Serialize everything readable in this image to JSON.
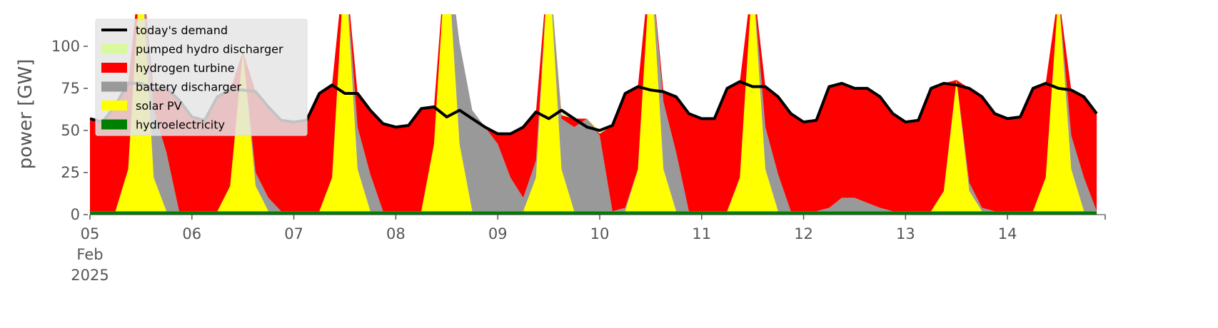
{
  "chart_data": {
    "type": "area",
    "ylabel": "power [GW]",
    "ylim": [
      0,
      119
    ],
    "yticks": [
      0,
      25,
      50,
      75,
      100
    ],
    "xlim": [
      "2025-02-05 00:00",
      "2025-02-14 23:00"
    ],
    "xticks": [
      {
        "value": "2025-02-05 00:00",
        "label": "05\nFeb\n2025"
      },
      {
        "value": "2025-02-06 00:00",
        "label": "06"
      },
      {
        "value": "2025-02-07 00:00",
        "label": "07"
      },
      {
        "value": "2025-02-08 00:00",
        "label": "08"
      },
      {
        "value": "2025-02-09 00:00",
        "label": "09"
      },
      {
        "value": "2025-02-10 00:00",
        "label": "10"
      },
      {
        "value": "2025-02-11 00:00",
        "label": "11"
      },
      {
        "value": "2025-02-12 00:00",
        "label": "12"
      },
      {
        "value": "2025-02-13 00:00",
        "label": "13"
      },
      {
        "value": "2025-02-14 00:00",
        "label": "14"
      }
    ],
    "legend": "upper left",
    "x": [
      "2025-02-05 00:00",
      "2025-02-05 03:00",
      "2025-02-05 06:00",
      "2025-02-05 09:00",
      "2025-02-05 12:00",
      "2025-02-05 15:00",
      "2025-02-05 18:00",
      "2025-02-05 21:00",
      "2025-02-06 00:00",
      "2025-02-06 03:00",
      "2025-02-06 06:00",
      "2025-02-06 09:00",
      "2025-02-06 12:00",
      "2025-02-06 15:00",
      "2025-02-06 18:00",
      "2025-02-06 21:00",
      "2025-02-07 00:00",
      "2025-02-07 03:00",
      "2025-02-07 06:00",
      "2025-02-07 09:00",
      "2025-02-07 12:00",
      "2025-02-07 15:00",
      "2025-02-07 18:00",
      "2025-02-07 21:00",
      "2025-02-08 00:00",
      "2025-02-08 03:00",
      "2025-02-08 06:00",
      "2025-02-08 09:00",
      "2025-02-08 12:00",
      "2025-02-08 15:00",
      "2025-02-08 18:00",
      "2025-02-08 21:00",
      "2025-02-09 00:00",
      "2025-02-09 03:00",
      "2025-02-09 06:00",
      "2025-02-09 09:00",
      "2025-02-09 12:00",
      "2025-02-09 15:00",
      "2025-02-09 18:00",
      "2025-02-09 21:00",
      "2025-02-10 00:00",
      "2025-02-10 03:00",
      "2025-02-10 06:00",
      "2025-02-10 09:00",
      "2025-02-10 12:00",
      "2025-02-10 15:00",
      "2025-02-10 18:00",
      "2025-02-10 21:00",
      "2025-02-11 00:00",
      "2025-02-11 03:00",
      "2025-02-11 06:00",
      "2025-02-11 09:00",
      "2025-02-11 12:00",
      "2025-02-11 15:00",
      "2025-02-11 18:00",
      "2025-02-11 21:00",
      "2025-02-12 00:00",
      "2025-02-12 03:00",
      "2025-02-12 06:00",
      "2025-02-12 09:00",
      "2025-02-12 12:00",
      "2025-02-12 15:00",
      "2025-02-12 18:00",
      "2025-02-12 21:00",
      "2025-02-13 00:00",
      "2025-02-13 03:00",
      "2025-02-13 06:00",
      "2025-02-13 09:00",
      "2025-02-13 12:00",
      "2025-02-13 15:00",
      "2025-02-13 18:00",
      "2025-02-13 21:00",
      "2025-02-14 00:00",
      "2025-02-14 03:00",
      "2025-02-14 06:00",
      "2025-02-14 09:00",
      "2025-02-14 12:00",
      "2025-02-14 15:00",
      "2025-02-14 18:00",
      "2025-02-14 21:00"
    ],
    "series": [
      {
        "name": "today's demand",
        "type": "line",
        "color": "#000000",
        "values": [
          57,
          55,
          65,
          78,
          78,
          74,
          75,
          68,
          58,
          56,
          70,
          74,
          74,
          73,
          64,
          56,
          55,
          56,
          72,
          77,
          72,
          72,
          62,
          54,
          52,
          53,
          63,
          64,
          58,
          62,
          57,
          52,
          48,
          48,
          52,
          61,
          57,
          62,
          57,
          52,
          50,
          53,
          72,
          76,
          74,
          73,
          70,
          60,
          57,
          57,
          75,
          79,
          76,
          76,
          70,
          60,
          55,
          56,
          76,
          78,
          75,
          75,
          70,
          60,
          55,
          56,
          75,
          78,
          77,
          75,
          70,
          60,
          57,
          58,
          75,
          78,
          75,
          74,
          70,
          60
        ]
      },
      {
        "name": "pumped hydro discharger",
        "type": "area",
        "color": "#d9f99d",
        "values": [
          0,
          0,
          0,
          0,
          0,
          0,
          0,
          0,
          0,
          0,
          0,
          0,
          0,
          0,
          0,
          0,
          0,
          0,
          0,
          0,
          0,
          0,
          0,
          0,
          0,
          0,
          0,
          0,
          0,
          0,
          0,
          0,
          0,
          0,
          0,
          0,
          3,
          3,
          0,
          0,
          2,
          0,
          0,
          0,
          0,
          0,
          0,
          0,
          0,
          0,
          0,
          0,
          0,
          0,
          0,
          0,
          0,
          0,
          0,
          0,
          0,
          0,
          0,
          0,
          0,
          0,
          0,
          0,
          0,
          0,
          0,
          0,
          0,
          0,
          0,
          0,
          0,
          0,
          0,
          0
        ]
      },
      {
        "name": "hydrogen turbine",
        "type": "area",
        "color": "#ff0000",
        "values": [
          55,
          53,
          63,
          51,
          0,
          12,
          38,
          66,
          56,
          54,
          68,
          57,
          0,
          48,
          54,
          54,
          53,
          54,
          70,
          55,
          0,
          20,
          38,
          52,
          50,
          51,
          61,
          22,
          0,
          0,
          0,
          0,
          6,
          26,
          42,
          29,
          0,
          2,
          5,
          0,
          1,
          51,
          68,
          49,
          0,
          6,
          33,
          58,
          55,
          55,
          73,
          57,
          0,
          24,
          46,
          58,
          53,
          54,
          72,
          68,
          65,
          68,
          66,
          58,
          53,
          54,
          73,
          64,
          0,
          56,
          66,
          58,
          55,
          56,
          73,
          56,
          0,
          27,
          48,
          58
        ]
      },
      {
        "name": "battery discharger",
        "type": "area",
        "color": "#999999",
        "values": [
          0,
          0,
          0,
          0,
          0,
          40,
          35,
          0,
          0,
          0,
          0,
          0,
          0,
          8,
          8,
          0,
          0,
          0,
          0,
          0,
          0,
          25,
          22,
          0,
          0,
          0,
          0,
          0,
          0,
          60,
          60,
          50,
          40,
          20,
          8,
          10,
          0,
          30,
          50,
          55,
          45,
          0,
          2,
          0,
          0,
          40,
          35,
          0,
          0,
          0,
          0,
          0,
          0,
          25,
          22,
          0,
          0,
          0,
          2,
          8,
          8,
          5,
          2,
          0,
          0,
          0,
          0,
          0,
          0,
          5,
          2,
          0,
          0,
          0,
          0,
          0,
          0,
          20,
          20,
          0
        ]
      },
      {
        "name": "solar PV",
        "type": "area",
        "color": "#ffff00",
        "values": [
          0,
          0,
          0,
          25,
          150,
          20,
          0,
          0,
          0,
          0,
          0,
          15,
          95,
          15,
          0,
          0,
          0,
          0,
          0,
          20,
          150,
          25,
          0,
          0,
          0,
          0,
          0,
          40,
          160,
          40,
          0,
          0,
          0,
          0,
          0,
          20,
          150,
          25,
          0,
          0,
          0,
          0,
          0,
          25,
          150,
          25,
          0,
          0,
          0,
          0,
          0,
          20,
          140,
          25,
          0,
          0,
          0,
          0,
          0,
          0,
          0,
          0,
          0,
          0,
          0,
          0,
          0,
          12,
          78,
          12,
          0,
          0,
          0,
          0,
          0,
          20,
          130,
          25,
          0,
          0
        ]
      },
      {
        "name": "hydroelectricity",
        "type": "area",
        "color": "#008000",
        "values": [
          2,
          2,
          2,
          2,
          2,
          2,
          2,
          2,
          2,
          2,
          2,
          2,
          2,
          2,
          2,
          2,
          2,
          2,
          2,
          2,
          2,
          2,
          2,
          2,
          2,
          2,
          2,
          2,
          2,
          2,
          2,
          2,
          2,
          2,
          2,
          2,
          2,
          2,
          2,
          2,
          2,
          2,
          2,
          2,
          2,
          2,
          2,
          2,
          2,
          2,
          2,
          2,
          2,
          2,
          2,
          2,
          2,
          2,
          2,
          2,
          2,
          2,
          2,
          2,
          2,
          2,
          2,
          2,
          2,
          2,
          2,
          2,
          2,
          2,
          2,
          2,
          2,
          2,
          2,
          2
        ]
      }
    ]
  }
}
